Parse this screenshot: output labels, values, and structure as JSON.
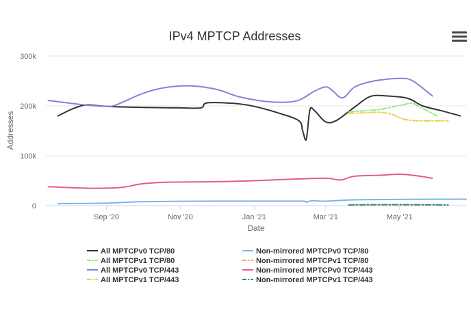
{
  "chart_data": {
    "type": "line",
    "title": "IPv4 MPTCP Addresses",
    "xlabel": "Date",
    "ylabel": "Addresses",
    "ylim": [
      0,
      300000
    ],
    "y_ticks": [
      {
        "value": 0,
        "label": "0"
      },
      {
        "value": 100000,
        "label": "100k"
      },
      {
        "value": 200000,
        "label": "200k"
      },
      {
        "value": 300000,
        "label": "300k"
      }
    ],
    "xlim": [
      "2020-07-13",
      "2021-06-25"
    ],
    "x_ticks": [
      {
        "date": "2020-09-01",
        "label": "Sep '20"
      },
      {
        "date": "2020-11-01",
        "label": "Nov '20"
      },
      {
        "date": "2021-01-01",
        "label": "Jan '21"
      },
      {
        "date": "2021-03-01",
        "label": "Mar '21"
      },
      {
        "date": "2021-05-01",
        "label": "May '21"
      }
    ],
    "grid": true,
    "legend_position": "bottom",
    "series": [
      {
        "name": "All MPTCPv0 TCP/80",
        "color": "#333333",
        "dash": "solid",
        "points": [
          [
            "2020-07-23",
            180000
          ],
          [
            "2020-08-05",
            195000
          ],
          [
            "2020-08-16",
            202000
          ],
          [
            "2020-09-01",
            199000
          ],
          [
            "2020-10-01",
            197000
          ],
          [
            "2020-11-01",
            196000
          ],
          [
            "2020-11-18",
            196000
          ],
          [
            "2020-11-23",
            206000
          ],
          [
            "2020-12-15",
            205000
          ],
          [
            "2021-01-01",
            199000
          ],
          [
            "2021-01-22",
            185000
          ],
          [
            "2021-02-07",
            170000
          ],
          [
            "2021-02-10",
            150000
          ],
          [
            "2021-02-13",
            133000
          ],
          [
            "2021-02-16",
            192000
          ],
          [
            "2021-02-20",
            190000
          ],
          [
            "2021-03-01",
            168000
          ],
          [
            "2021-03-10",
            171000
          ],
          [
            "2021-03-25",
            198000
          ],
          [
            "2021-04-07",
            219000
          ],
          [
            "2021-04-20",
            220000
          ],
          [
            "2021-05-08",
            215000
          ],
          [
            "2021-05-20",
            200000
          ],
          [
            "2021-06-05",
            190000
          ],
          [
            "2021-06-20",
            180000
          ]
        ]
      },
      {
        "name": "All MPTCPv1 TCP/80",
        "color": "#90ed7d",
        "dash": "dashdot",
        "points": [
          [
            "2021-03-20",
            188000
          ],
          [
            "2021-04-01",
            190000
          ],
          [
            "2021-04-15",
            193000
          ],
          [
            "2021-04-25",
            198000
          ],
          [
            "2021-05-05",
            203000
          ],
          [
            "2021-05-12",
            205000
          ],
          [
            "2021-05-20",
            195000
          ],
          [
            "2021-06-01",
            180000
          ]
        ]
      },
      {
        "name": "All MPTCPv0 TCP/443",
        "color": "#7f85d9",
        "dash": "solid",
        "points": [
          [
            "2020-07-15",
            211000
          ],
          [
            "2020-08-10",
            203000
          ],
          [
            "2020-09-01",
            199000
          ],
          [
            "2020-09-10",
            203000
          ],
          [
            "2020-10-01",
            225000
          ],
          [
            "2020-10-20",
            237000
          ],
          [
            "2020-11-10",
            240000
          ],
          [
            "2020-12-01",
            233000
          ],
          [
            "2020-12-20",
            218000
          ],
          [
            "2021-01-15",
            208000
          ],
          [
            "2021-02-05",
            210000
          ],
          [
            "2021-02-20",
            230000
          ],
          [
            "2021-03-01",
            238000
          ],
          [
            "2021-03-06",
            232000
          ],
          [
            "2021-03-15",
            216000
          ],
          [
            "2021-03-25",
            238000
          ],
          [
            "2021-04-10",
            250000
          ],
          [
            "2021-05-01",
            255000
          ],
          [
            "2021-05-12",
            250000
          ],
          [
            "2021-05-28",
            220000
          ]
        ]
      },
      {
        "name": "All MPTCPv1 TCP/443",
        "color": "#e4d354",
        "dash": "dashdot",
        "points": [
          [
            "2021-03-20",
            185000
          ],
          [
            "2021-04-01",
            186000
          ],
          [
            "2021-04-15",
            187000
          ],
          [
            "2021-04-25",
            183000
          ],
          [
            "2021-05-01",
            176000
          ],
          [
            "2021-05-10",
            171000
          ],
          [
            "2021-05-20",
            170000
          ],
          [
            "2021-06-01",
            170000
          ],
          [
            "2021-06-10",
            170000
          ]
        ]
      },
      {
        "name": "Non-mirrored MPTCPv0 TCP/80",
        "color": "#7cb5ec",
        "dash": "solid",
        "points": [
          [
            "2020-07-23",
            4000
          ],
          [
            "2020-09-01",
            5000
          ],
          [
            "2020-10-01",
            8000
          ],
          [
            "2020-12-01",
            9000
          ],
          [
            "2021-01-15",
            9000
          ],
          [
            "2021-02-10",
            9000
          ],
          [
            "2021-02-13",
            7000
          ],
          [
            "2021-02-18",
            10000
          ],
          [
            "2021-03-01",
            9000
          ],
          [
            "2021-04-01",
            12000
          ],
          [
            "2021-06-25",
            13000
          ]
        ]
      },
      {
        "name": "Non-mirrored MPTCPv1 TCP/80",
        "color": "#f7a35c",
        "dash": "dashdot",
        "points": [
          [
            "2021-03-20",
            800
          ],
          [
            "2021-04-15",
            1000
          ],
          [
            "2021-05-10",
            1000
          ],
          [
            "2021-06-10",
            1000
          ]
        ]
      },
      {
        "name": "Non-mirrored MPTCPv0 TCP/443",
        "color": "#e45c84",
        "dash": "solid",
        "points": [
          [
            "2020-07-15",
            38000
          ],
          [
            "2020-08-15",
            35000
          ],
          [
            "2020-09-01",
            35000
          ],
          [
            "2020-09-15",
            37000
          ],
          [
            "2020-10-01",
            44000
          ],
          [
            "2020-10-20",
            47000
          ],
          [
            "2020-12-01",
            48000
          ],
          [
            "2021-01-01",
            50000
          ],
          [
            "2021-02-01",
            53000
          ],
          [
            "2021-03-01",
            55000
          ],
          [
            "2021-03-10",
            52000
          ],
          [
            "2021-03-15",
            52000
          ],
          [
            "2021-03-25",
            59000
          ],
          [
            "2021-04-15",
            61000
          ],
          [
            "2021-05-01",
            63000
          ],
          [
            "2021-05-15",
            60000
          ],
          [
            "2021-05-28",
            55000
          ]
        ]
      },
      {
        "name": "Non-mirrored MPTCPv1 TCP/443",
        "color": "#2b908f",
        "dash": "dashdot",
        "points": [
          [
            "2021-03-20",
            1500
          ],
          [
            "2021-04-15",
            2000
          ],
          [
            "2021-05-10",
            2000
          ],
          [
            "2021-06-10",
            1500
          ]
        ]
      }
    ]
  },
  "toolbar": {
    "menu_icon": "hamburger-menu-icon"
  }
}
